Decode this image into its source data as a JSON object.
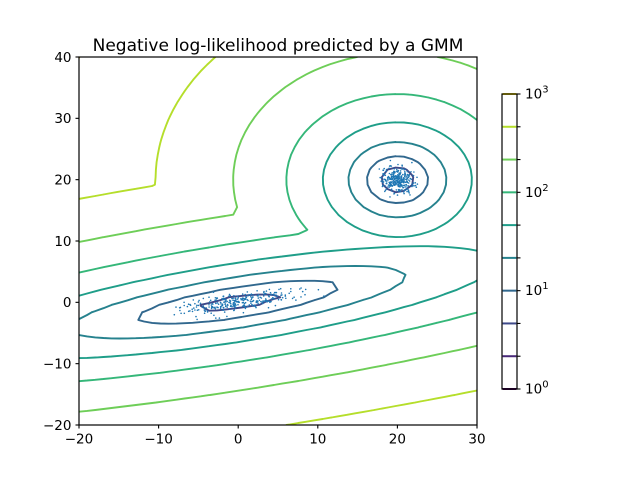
{
  "figure": {
    "background": "#ffffff"
  },
  "chart_data": {
    "type": "contour",
    "title": "Negative log-likelihood predicted by a GMM",
    "xlim": [
      -20,
      30
    ],
    "ylim": [
      -20,
      40
    ],
    "xticks": [
      -20,
      -10,
      0,
      10,
      20,
      30
    ],
    "yticks": [
      -20,
      -10,
      0,
      10,
      20,
      30,
      40
    ],
    "grid_points": 50,
    "levels": [
      1.0,
      2.1544,
      4.6416,
      10.0,
      21.5443,
      46.4159,
      100.0,
      215.4435,
      464.1589,
      1000.0
    ],
    "level_colors": [
      "#440154",
      "#482878",
      "#3e4989",
      "#31688e",
      "#26828e",
      "#1f9e89",
      "#35b779",
      "#6ece58",
      "#b5de2b",
      "#fde725"
    ],
    "gmm": {
      "weights": [
        0.5,
        0.5
      ],
      "means": [
        [
          0,
          0
        ],
        [
          20,
          20
        ]
      ],
      "covariances": [
        [
          [
            12.25,
            2.45
          ],
          [
            2.45,
            0.98
          ]
        ],
        [
          [
            1,
            0
          ],
          [
            0,
            1
          ]
        ]
      ]
    },
    "scatter": {
      "color": "#1f77b4",
      "marker_radius": 0.8,
      "clusters": [
        {
          "n": 300,
          "mean": [
            0,
            0
          ],
          "transform": [
            [
              0,
              -0.7
            ],
            [
              3.5,
              0.7
            ]
          ]
        },
        {
          "n": 300,
          "mean": [
            20,
            20
          ],
          "transform": [
            [
              1,
              0
            ],
            [
              0,
              1
            ]
          ]
        }
      ]
    },
    "colorbar": {
      "scale": "log",
      "ticks": [
        {
          "level": 1,
          "base": "10",
          "exp": "0"
        },
        {
          "level": 10,
          "base": "10",
          "exp": "1"
        },
        {
          "level": 100,
          "base": "10",
          "exp": "2"
        },
        {
          "level": 1000,
          "base": "10",
          "exp": "3"
        }
      ]
    }
  }
}
